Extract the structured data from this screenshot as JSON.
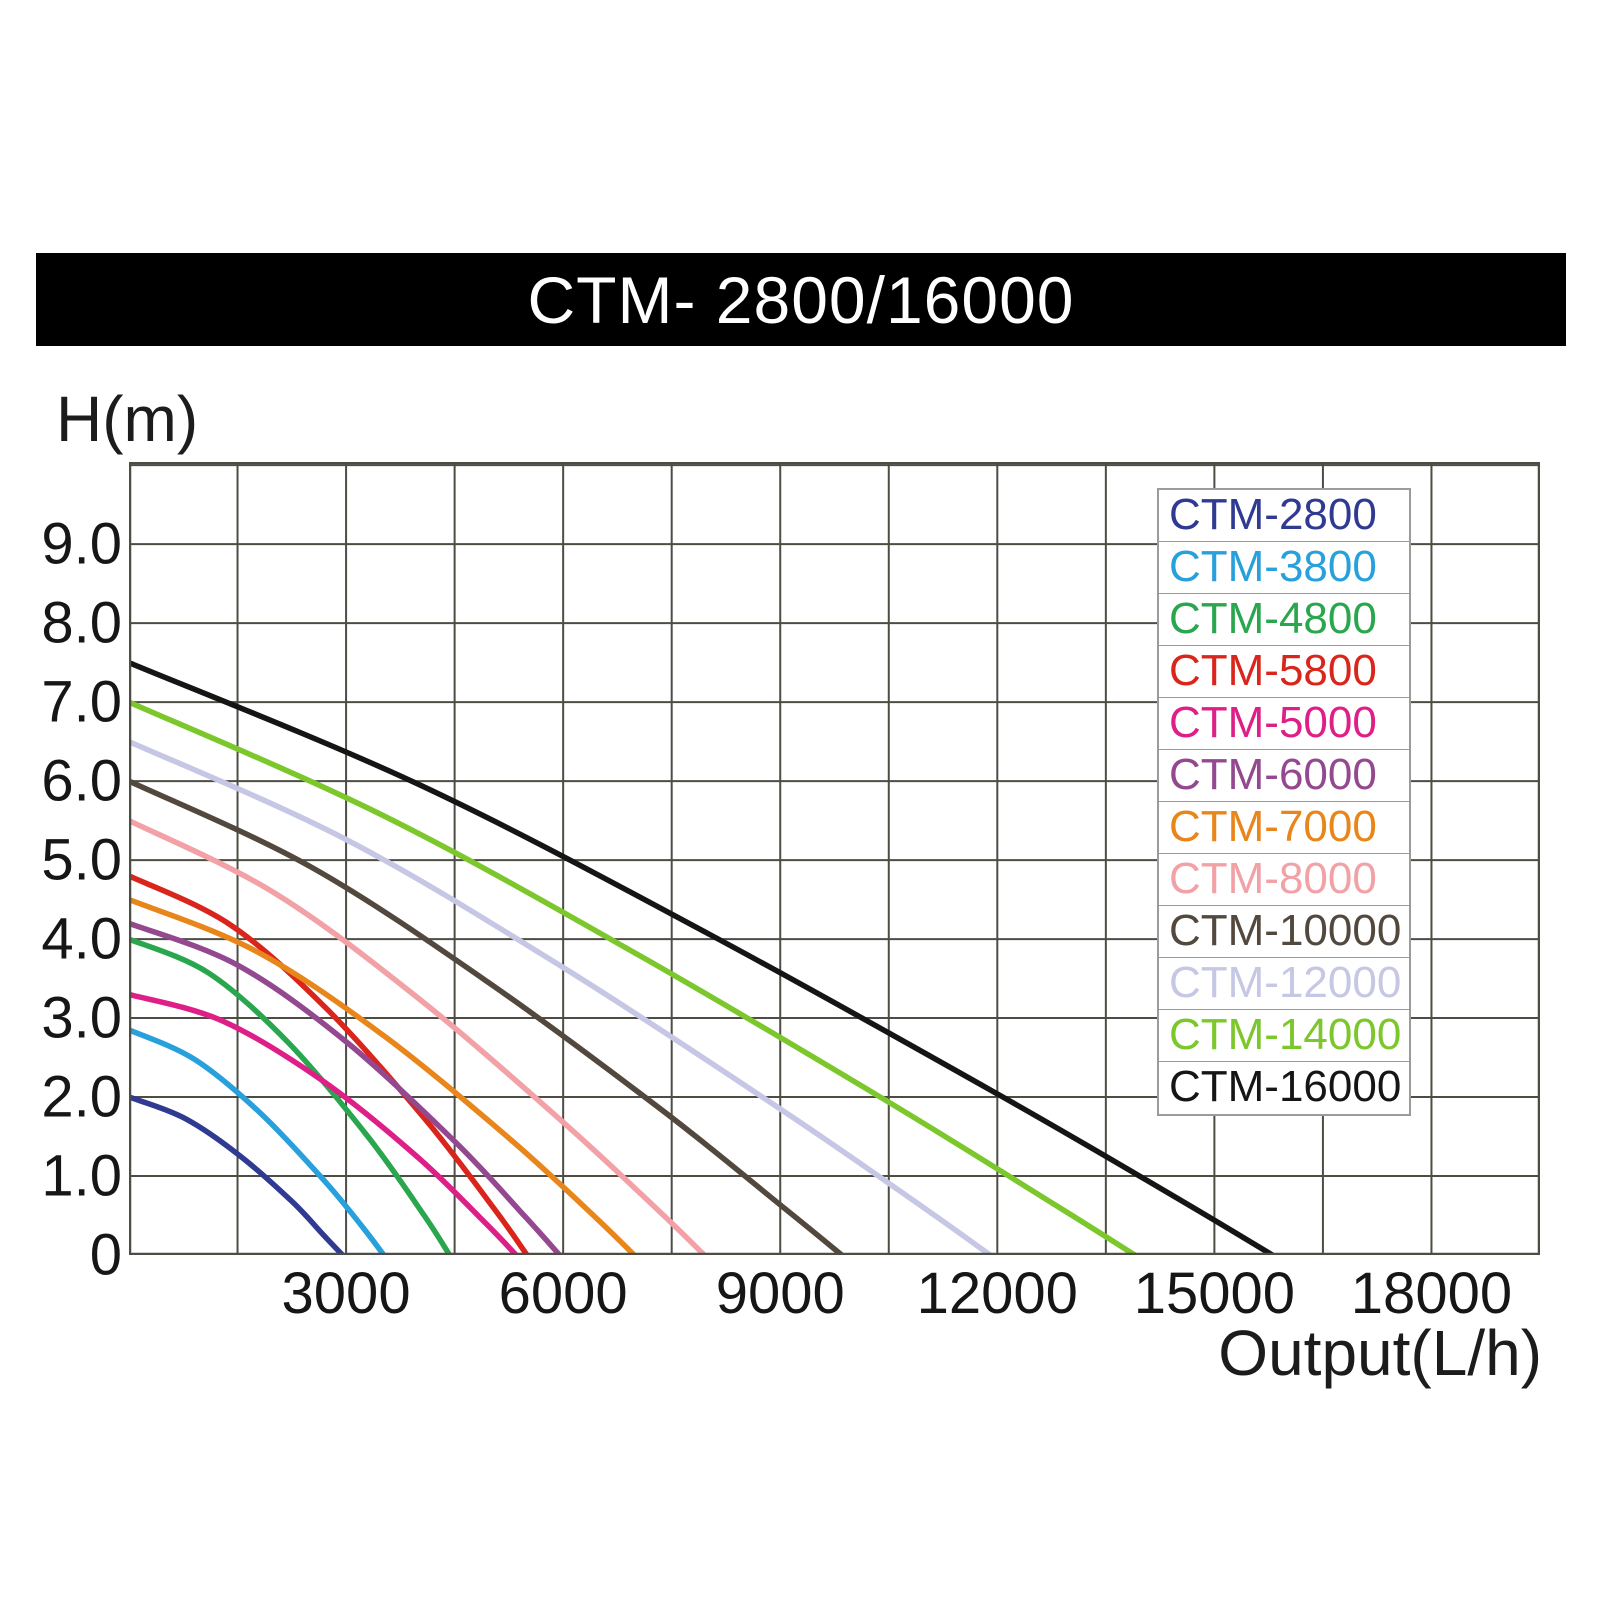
{
  "title_bar": {
    "text": "CTM- 2800/16000",
    "bg_color": "#000000",
    "text_color": "#ffffff"
  },
  "chart_data": {
    "type": "line",
    "title": "CTM- 2800/16000",
    "xlabel": "Output(L/h)",
    "ylabel": "H(m)",
    "xlim": [
      0,
      19500
    ],
    "ylim": [
      0,
      10.04
    ],
    "grid": true,
    "grid_x_step": 1500,
    "grid_y_step": 1.0,
    "grid_color": "#4d4d44",
    "legend_position": "upper right",
    "x_ticks": [
      {
        "value": 3000,
        "label": "3000"
      },
      {
        "value": 6000,
        "label": "6000"
      },
      {
        "value": 9000,
        "label": "9000"
      },
      {
        "value": 12000,
        "label": "12000"
      },
      {
        "value": 15000,
        "label": "15000"
      },
      {
        "value": 18000,
        "label": "18000"
      }
    ],
    "y_ticks": [
      {
        "value": 9,
        "label": "9.0"
      },
      {
        "value": 8,
        "label": "8.0"
      },
      {
        "value": 7,
        "label": "7.0"
      },
      {
        "value": 6,
        "label": "6.0"
      },
      {
        "value": 5,
        "label": "5.0"
      },
      {
        "value": 4,
        "label": "4.0"
      },
      {
        "value": 3,
        "label": "3.0"
      },
      {
        "value": 2,
        "label": "2.0"
      },
      {
        "value": 1,
        "label": "1.0"
      },
      {
        "value": 0,
        "label": "0"
      }
    ],
    "series": [
      {
        "name": "CTM-2800",
        "color": "#303a92",
        "points": [
          [
            0,
            2.0
          ],
          [
            750,
            1.74
          ],
          [
            1500,
            1.28
          ],
          [
            2250,
            0.68
          ],
          [
            2700,
            0.24
          ],
          [
            2950,
            0
          ]
        ]
      },
      {
        "name": "CTM-3800",
        "color": "#28a0dc",
        "points": [
          [
            0,
            2.85
          ],
          [
            900,
            2.48
          ],
          [
            1800,
            1.81
          ],
          [
            2700,
            0.94
          ],
          [
            3240,
            0.34
          ],
          [
            3520,
            0
          ]
        ]
      },
      {
        "name": "CTM-4800",
        "color": "#2aa64e",
        "points": [
          [
            0,
            4.0
          ],
          [
            1100,
            3.57
          ],
          [
            2200,
            2.69
          ],
          [
            3300,
            1.5
          ],
          [
            4080,
            0.5
          ],
          [
            4430,
            0
          ]
        ]
      },
      {
        "name": "CTM-5800",
        "color": "#d9251c",
        "points": [
          [
            0,
            4.8
          ],
          [
            1400,
            4.18
          ],
          [
            2750,
            3.1
          ],
          [
            4100,
            1.71
          ],
          [
            5060,
            0.57
          ],
          [
            5500,
            0
          ]
        ]
      },
      {
        "name": "CTM-5000",
        "color": "#de1f87",
        "points": [
          [
            0,
            3.3
          ],
          [
            1300,
            2.96
          ],
          [
            2700,
            2.19
          ],
          [
            4000,
            1.23
          ],
          [
            4920,
            0.41
          ],
          [
            5350,
            0
          ]
        ]
      },
      {
        "name": "CTM-6000",
        "color": "#93488f",
        "points": [
          [
            0,
            4.2
          ],
          [
            1500,
            3.67
          ],
          [
            3000,
            2.7
          ],
          [
            4500,
            1.44
          ],
          [
            5470,
            0.49
          ],
          [
            5950,
            0
          ]
        ]
      },
      {
        "name": "CTM-7000",
        "color": "#e8861c",
        "points": [
          [
            0,
            4.5
          ],
          [
            1750,
            3.85
          ],
          [
            3500,
            2.79
          ],
          [
            5250,
            1.48
          ],
          [
            6420,
            0.5
          ],
          [
            6980,
            0
          ]
        ]
      },
      {
        "name": "CTM-8000",
        "color": "#f2a2a6",
        "points": [
          [
            0,
            5.5
          ],
          [
            2000,
            4.59
          ],
          [
            4000,
            3.25
          ],
          [
            6000,
            1.68
          ],
          [
            7310,
            0.57
          ],
          [
            7950,
            0
          ]
        ]
      },
      {
        "name": "CTM-10000",
        "color": "#52483d",
        "points": [
          [
            0,
            6.0
          ],
          [
            2500,
            4.92
          ],
          [
            5000,
            3.43
          ],
          [
            7400,
            1.81
          ],
          [
            9060,
            0.59
          ],
          [
            9850,
            0
          ]
        ]
      },
      {
        "name": "CTM-12000",
        "color": "#c6c7e4",
        "points": [
          [
            0,
            6.5
          ],
          [
            3000,
            5.26
          ],
          [
            6000,
            3.64
          ],
          [
            9000,
            1.85
          ],
          [
            10950,
            0.62
          ],
          [
            11900,
            0
          ]
        ]
      },
      {
        "name": "CTM-14000",
        "color": "#7cc72c",
        "points": [
          [
            0,
            7.0
          ],
          [
            3500,
            5.57
          ],
          [
            7000,
            3.82
          ],
          [
            10400,
            1.99
          ],
          [
            12790,
            0.64
          ],
          [
            13900,
            0
          ]
        ]
      },
      {
        "name": "CTM-16000",
        "color": "#151515",
        "points": [
          [
            0,
            7.5
          ],
          [
            4000,
            5.96
          ],
          [
            8000,
            4.07
          ],
          [
            12000,
            2.04
          ],
          [
            14540,
            0.69
          ],
          [
            15800,
            0
          ]
        ]
      }
    ]
  }
}
